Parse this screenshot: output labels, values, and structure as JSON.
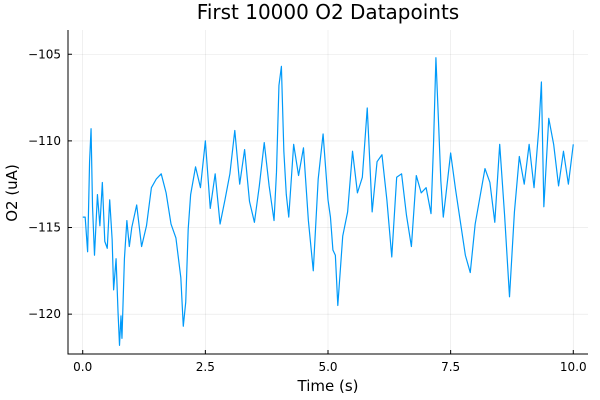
{
  "chart_data": {
    "type": "line",
    "title": "First 10000 O2 Datapoints",
    "xlabel": "Time (s)",
    "ylabel": "O2 (uA)",
    "xlim": [
      -0.3,
      10.3
    ],
    "ylim": [
      -122.3,
      -103.6
    ],
    "xticks": [
      0.0,
      2.5,
      5.0,
      7.5,
      10.0
    ],
    "xtick_labels": [
      "0.0",
      "2.5",
      "5.0",
      "7.5",
      "10.0"
    ],
    "yticks": [
      -120,
      -115,
      -110,
      -105
    ],
    "ytick_labels": [
      "−120",
      "−115",
      "−110",
      "−105"
    ],
    "grid": true,
    "legend": "none",
    "series": [
      {
        "color": "#009af9",
        "x": [
          0.0,
          0.05,
          0.1,
          0.14,
          0.17,
          0.2,
          0.24,
          0.3,
          0.35,
          0.4,
          0.45,
          0.5,
          0.55,
          0.6,
          0.63,
          0.68,
          0.72,
          0.75,
          0.78,
          0.8,
          0.85,
          0.9,
          0.95,
          1.0,
          1.1,
          1.2,
          1.3,
          1.4,
          1.5,
          1.6,
          1.7,
          1.8,
          1.9,
          2.0,
          2.05,
          2.1,
          2.15,
          2.2,
          2.3,
          2.4,
          2.5,
          2.6,
          2.7,
          2.8,
          2.9,
          3.0,
          3.1,
          3.2,
          3.3,
          3.4,
          3.5,
          3.6,
          3.7,
          3.8,
          3.9,
          3.95,
          4.0,
          4.05,
          4.1,
          4.15,
          4.2,
          4.3,
          4.4,
          4.5,
          4.6,
          4.7,
          4.8,
          4.9,
          5.0,
          5.05,
          5.1,
          5.15,
          5.2,
          5.3,
          5.4,
          5.5,
          5.6,
          5.7,
          5.8,
          5.9,
          6.0,
          6.1,
          6.2,
          6.3,
          6.4,
          6.5,
          6.6,
          6.7,
          6.8,
          6.9,
          7.0,
          7.1,
          7.15,
          7.2,
          7.25,
          7.3,
          7.35,
          7.4,
          7.5,
          7.6,
          7.7,
          7.8,
          7.9,
          8.0,
          8.1,
          8.2,
          8.3,
          8.4,
          8.5,
          8.6,
          8.7,
          8.8,
          8.9,
          9.0,
          9.1,
          9.2,
          9.3,
          9.35,
          9.4,
          9.5,
          9.6,
          9.7,
          9.8,
          9.9,
          10.0
        ],
        "y": [
          -114.4,
          -114.4,
          -116.4,
          -111.2,
          -109.3,
          -113.8,
          -116.6,
          -113.1,
          -114.9,
          -112.4,
          -115.8,
          -116.2,
          -113.4,
          -115.7,
          -118.6,
          -116.8,
          -119.9,
          -121.8,
          -120.1,
          -121.4,
          -116.8,
          -114.6,
          -116.1,
          -115.0,
          -113.7,
          -116.1,
          -114.9,
          -112.7,
          -112.2,
          -111.9,
          -113.0,
          -114.8,
          -115.6,
          -117.9,
          -120.7,
          -119.3,
          -115.1,
          -113.1,
          -111.5,
          -112.7,
          -110.0,
          -113.9,
          -111.9,
          -114.8,
          -113.4,
          -111.9,
          -109.4,
          -112.5,
          -110.5,
          -113.5,
          -114.7,
          -112.6,
          -110.1,
          -112.6,
          -114.6,
          -111.8,
          -106.8,
          -105.7,
          -110.6,
          -113.1,
          -114.4,
          -110.2,
          -112.0,
          -110.4,
          -114.6,
          -117.5,
          -112.2,
          -109.6,
          -113.4,
          -114.4,
          -116.3,
          -116.6,
          -119.5,
          -115.5,
          -114.1,
          -110.6,
          -113.0,
          -112.1,
          -108.1,
          -114.1,
          -111.2,
          -110.8,
          -113.4,
          -116.7,
          -112.1,
          -111.9,
          -114.3,
          -116.1,
          -112.0,
          -113.0,
          -112.7,
          -114.2,
          -110.3,
          -105.2,
          -108.7,
          -112.3,
          -114.4,
          -113.2,
          -110.7,
          -112.8,
          -114.7,
          -116.6,
          -117.6,
          -114.8,
          -113.2,
          -111.6,
          -112.4,
          -114.7,
          -110.2,
          -114.3,
          -119.0,
          -114.1,
          -110.9,
          -112.5,
          -110.2,
          -112.7,
          -109.2,
          -106.6,
          -113.8,
          -108.7,
          -110.2,
          -112.6,
          -110.6,
          -112.5,
          -110.2
        ]
      }
    ]
  }
}
